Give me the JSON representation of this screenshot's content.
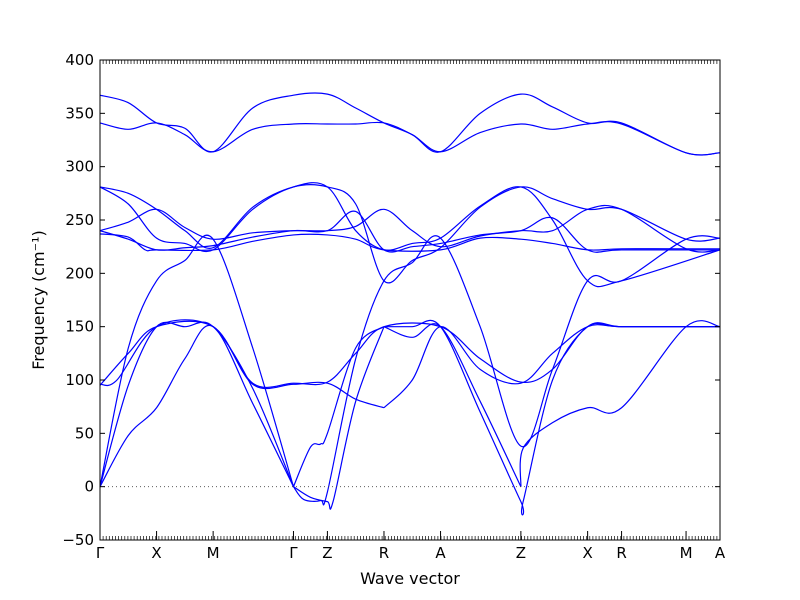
{
  "chart_data": {
    "type": "line",
    "title": "",
    "xlabel": "Wave vector",
    "ylabel": "Frequency (cm⁻¹)",
    "ylim": [
      -50,
      400
    ],
    "yticks": [
      -50,
      0,
      50,
      100,
      150,
      200,
      250,
      300,
      350,
      400
    ],
    "zero_line": "dotted",
    "grid": false,
    "line_color": "#0000ff",
    "high_symmetry_points": [
      {
        "label": "Γ",
        "x": 0.0
      },
      {
        "label": "X",
        "x": 0.5
      },
      {
        "label": "M",
        "x": 1.0
      },
      {
        "label": "Γ",
        "x": 1.71
      },
      {
        "label": "Z",
        "x": 2.01
      },
      {
        "label": "R",
        "x": 2.51
      },
      {
        "label": "A",
        "x": 3.01
      },
      {
        "label": "Z",
        "x": 3.72
      },
      {
        "label": "X",
        "x": 4.31
      },
      {
        "label": "R",
        "x": 4.61
      },
      {
        "label": "M",
        "x": 5.18
      },
      {
        "label": "A",
        "x": 5.48
      }
    ],
    "series": [
      {
        "values": [
          [
            0,
            0
          ],
          [
            0.25,
            48
          ],
          [
            0.5,
            74
          ],
          [
            0.75,
            120
          ],
          [
            1.0,
            150
          ],
          [
            1.35,
            78
          ],
          [
            1.71,
            0
          ]
        ]
      },
      {
        "values": [
          [
            1.71,
            0
          ],
          [
            1.86,
            37
          ],
          [
            1.95,
            40
          ],
          [
            2.01,
            50
          ],
          [
            2.26,
            130
          ],
          [
            2.51,
            150
          ]
        ]
      },
      {
        "values": [
          [
            2.51,
            150
          ],
          [
            2.76,
            140
          ],
          [
            3.01,
            150
          ],
          [
            3.36,
            80
          ],
          [
            3.72,
            0
          ]
        ]
      },
      {
        "values": [
          [
            3.72,
            0
          ],
          [
            3.74,
            36
          ],
          [
            4.0,
            60
          ],
          [
            4.31,
            74
          ],
          [
            4.61,
            74
          ],
          [
            5.18,
            150
          ],
          [
            5.48,
            150
          ]
        ]
      },
      {
        "values": [
          [
            0,
            0
          ],
          [
            0.25,
            95
          ],
          [
            0.5,
            150
          ],
          [
            0.75,
            150
          ],
          [
            1.0,
            150
          ],
          [
            1.35,
            92
          ],
          [
            1.71,
            0
          ]
        ]
      },
      {
        "values": [
          [
            1.71,
            0
          ],
          [
            1.86,
            -10
          ],
          [
            2.01,
            -14
          ],
          [
            2.06,
            -14
          ],
          [
            2.26,
            80
          ],
          [
            2.51,
            150
          ]
        ]
      },
      {
        "values": [
          [
            2.51,
            150
          ],
          [
            2.76,
            150
          ],
          [
            3.01,
            150
          ],
          [
            3.36,
            70
          ],
          [
            3.72,
            -14
          ],
          [
            3.74,
            -14
          ],
          [
            4.0,
            100
          ],
          [
            4.31,
            150
          ],
          [
            4.61,
            150
          ],
          [
            5.18,
            150
          ],
          [
            5.48,
            150
          ]
        ]
      },
      {
        "values": [
          [
            0,
            95
          ],
          [
            0.25,
            125
          ],
          [
            0.5,
            150
          ],
          [
            1.0,
            150
          ],
          [
            1.35,
            96
          ],
          [
            1.71,
            96
          ],
          [
            2.01,
            97
          ],
          [
            2.26,
            82
          ],
          [
            2.51,
            74
          ]
        ]
      },
      {
        "values": [
          [
            2.51,
            74
          ],
          [
            2.76,
            100
          ],
          [
            3.01,
            150
          ],
          [
            3.36,
            110
          ],
          [
            3.72,
            97
          ],
          [
            4.0,
            125
          ],
          [
            4.31,
            150
          ],
          [
            4.61,
            150
          ],
          [
            5.18,
            150
          ],
          [
            5.48,
            150
          ]
        ]
      },
      {
        "values": [
          [
            0,
            96
          ],
          [
            0.15,
            100
          ],
          [
            0.5,
            150
          ],
          [
            1.0,
            150
          ],
          [
            1.35,
            97
          ],
          [
            1.71,
            97
          ],
          [
            2.01,
            98
          ],
          [
            2.26,
            125
          ],
          [
            2.51,
            150
          ],
          [
            3.01,
            150
          ],
          [
            3.36,
            120
          ],
          [
            3.72,
            98
          ],
          [
            4.0,
            110
          ],
          [
            4.31,
            150
          ],
          [
            4.61,
            150
          ],
          [
            5.48,
            150
          ]
        ]
      },
      {
        "values": [
          [
            0,
            0
          ],
          [
            0.25,
            130
          ],
          [
            0.5,
            193
          ],
          [
            0.75,
            212
          ],
          [
            1.0,
            232
          ],
          [
            1.35,
            130
          ],
          [
            1.71,
            0
          ]
        ]
      },
      {
        "values": [
          [
            1.71,
            0
          ],
          [
            1.8,
            -12
          ],
          [
            1.95,
            -13
          ],
          [
            2.01,
            -5
          ],
          [
            2.26,
            120
          ],
          [
            2.51,
            193
          ],
          [
            2.76,
            210
          ],
          [
            3.01,
            233
          ],
          [
            3.36,
            150
          ],
          [
            3.72,
            38
          ],
          [
            4.0,
            110
          ],
          [
            4.31,
            193
          ],
          [
            4.61,
            193
          ],
          [
            5.18,
            232
          ],
          [
            5.48,
            233
          ]
        ]
      },
      {
        "values": [
          [
            0,
            237
          ],
          [
            0.25,
            234
          ],
          [
            0.4,
            222
          ],
          [
            0.5,
            222
          ],
          [
            1.0,
            222
          ],
          [
            1.35,
            230
          ],
          [
            1.71,
            236
          ],
          [
            2.01,
            236
          ],
          [
            2.26,
            232
          ],
          [
            2.51,
            222
          ],
          [
            3.01,
            222
          ],
          [
            3.36,
            233
          ],
          [
            3.72,
            232
          ],
          [
            4.0,
            228
          ],
          [
            4.31,
            222
          ],
          [
            4.61,
            223
          ],
          [
            5.18,
            223
          ],
          [
            5.48,
            223
          ]
        ]
      },
      {
        "values": [
          [
            0,
            240
          ],
          [
            0.25,
            232
          ],
          [
            0.5,
            222
          ],
          [
            0.75,
            224
          ],
          [
            1.0,
            226
          ],
          [
            1.35,
            234
          ],
          [
            1.71,
            240
          ],
          [
            2.01,
            240
          ],
          [
            2.26,
            258
          ],
          [
            2.51,
            222
          ],
          [
            2.76,
            225
          ],
          [
            3.01,
            228
          ],
          [
            3.36,
            236
          ],
          [
            3.72,
            240
          ],
          [
            4.0,
            252
          ],
          [
            4.31,
            222
          ],
          [
            4.61,
            222
          ],
          [
            5.48,
            222
          ]
        ]
      },
      {
        "values": [
          [
            0,
            240
          ],
          [
            0.25,
            248
          ],
          [
            0.5,
            260
          ],
          [
            0.75,
            243
          ],
          [
            1.0,
            232
          ],
          [
            1.35,
            238
          ],
          [
            1.71,
            240
          ],
          [
            2.01,
            240
          ],
          [
            2.26,
            244
          ],
          [
            2.51,
            260
          ],
          [
            2.76,
            240
          ],
          [
            3.01,
            225
          ],
          [
            3.36,
            235
          ],
          [
            3.72,
            240
          ],
          [
            4.0,
            240
          ],
          [
            4.31,
            260
          ],
          [
            4.61,
            260
          ],
          [
            5.18,
            223
          ],
          [
            5.48,
            222
          ]
        ]
      },
      {
        "values": [
          [
            0,
            281
          ],
          [
            0.25,
            265
          ],
          [
            0.5,
            233
          ],
          [
            0.75,
            228
          ],
          [
            1.0,
            222
          ],
          [
            1.35,
            260
          ],
          [
            1.71,
            281
          ],
          [
            2.01,
            281
          ],
          [
            2.26,
            240
          ],
          [
            2.51,
            222
          ],
          [
            2.76,
            228
          ],
          [
            3.01,
            233
          ],
          [
            3.36,
            263
          ],
          [
            3.72,
            281
          ],
          [
            4.0,
            250
          ],
          [
            4.31,
            193
          ],
          [
            4.61,
            193
          ],
          [
            5.48,
            222
          ]
        ]
      },
      {
        "values": [
          [
            0,
            281
          ],
          [
            0.25,
            275
          ],
          [
            0.5,
            260
          ],
          [
            0.75,
            240
          ],
          [
            1.0,
            224
          ],
          [
            1.35,
            262
          ],
          [
            1.71,
            281
          ],
          [
            2.01,
            281
          ],
          [
            2.26,
            265
          ],
          [
            2.51,
            193
          ],
          [
            2.76,
            212
          ],
          [
            3.01,
            224
          ],
          [
            3.36,
            262
          ],
          [
            3.72,
            281
          ],
          [
            4.0,
            270
          ],
          [
            4.31,
            260
          ],
          [
            4.61,
            260
          ],
          [
            5.18,
            232
          ],
          [
            5.48,
            233
          ]
        ]
      },
      {
        "values": [
          [
            0,
            341
          ],
          [
            0.25,
            335
          ],
          [
            0.5,
            341
          ],
          [
            0.75,
            330
          ],
          [
            1.0,
            314
          ],
          [
            1.35,
            335
          ],
          [
            1.71,
            340
          ],
          [
            2.01,
            340
          ],
          [
            2.26,
            340
          ],
          [
            2.51,
            341
          ],
          [
            2.76,
            330
          ],
          [
            3.01,
            314
          ],
          [
            3.36,
            332
          ],
          [
            3.72,
            340
          ],
          [
            4.0,
            335
          ],
          [
            4.31,
            340
          ],
          [
            4.61,
            340
          ],
          [
            5.18,
            313
          ],
          [
            5.48,
            313
          ]
        ]
      },
      {
        "values": [
          [
            0,
            367
          ],
          [
            0.25,
            360
          ],
          [
            0.5,
            341
          ],
          [
            0.75,
            336
          ],
          [
            1.0,
            314
          ],
          [
            1.35,
            355
          ],
          [
            1.71,
            367
          ],
          [
            2.01,
            368
          ],
          [
            2.26,
            355
          ],
          [
            2.51,
            341
          ],
          [
            2.76,
            330
          ],
          [
            3.01,
            314
          ],
          [
            3.36,
            350
          ],
          [
            3.72,
            368
          ],
          [
            4.0,
            356
          ],
          [
            4.31,
            341
          ],
          [
            4.61,
            341
          ],
          [
            5.18,
            313
          ],
          [
            5.48,
            313
          ]
        ]
      }
    ]
  }
}
